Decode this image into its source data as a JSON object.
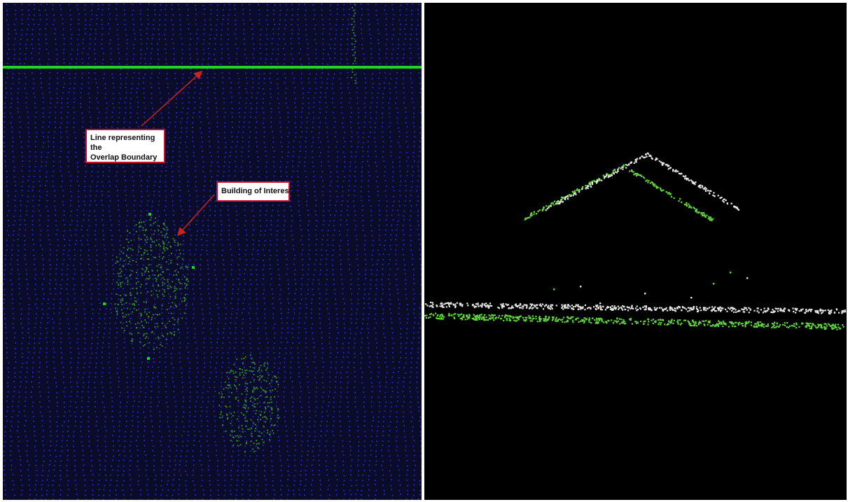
{
  "plan_view": {
    "callouts": {
      "overlap_boundary": "Line representing the\nOverlap Boundary",
      "building": "Building of Interest"
    },
    "colors": {
      "background": "#0b0b2a",
      "ground_points": "#2b2bd6",
      "vegetation_points": "#2f9a2f",
      "boundary_line": "#22d422",
      "callout_border": "#c8102e",
      "arrow": "#cc2222"
    }
  },
  "profile_view": {
    "colors": {
      "background": "#000000",
      "strip_a_points": "#5fd93a",
      "strip_b_points": "#e6e6e6"
    }
  }
}
